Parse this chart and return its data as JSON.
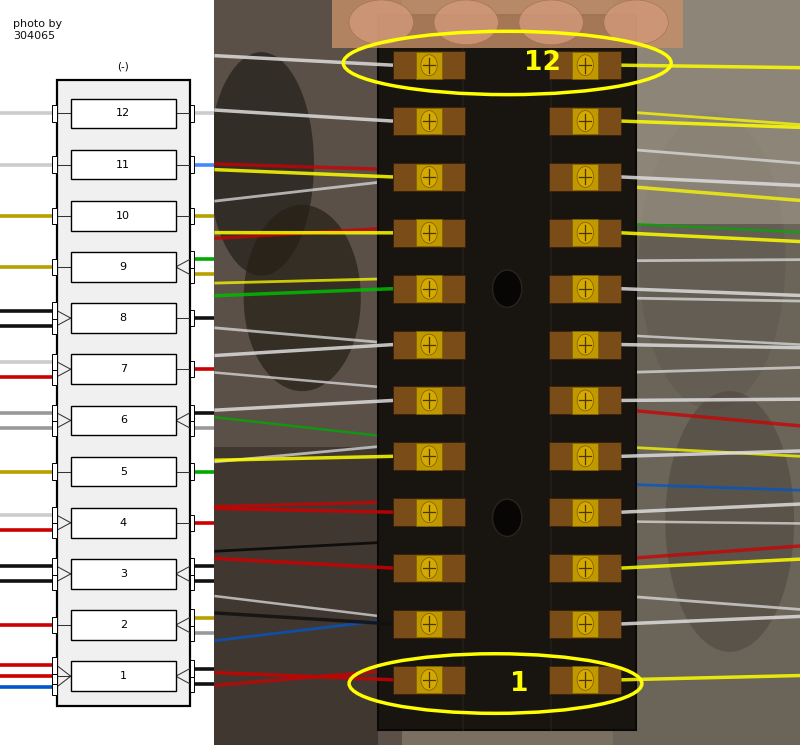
{
  "photo_credit": "photo by\n304065",
  "fuse_count": 12,
  "bg_color": "#ffffff",
  "smiley": "(-)",
  "ellipse_color": "#ffff00",
  "photo_bg_color": "#7a7060",
  "block_color": "#1c1a16",
  "copper_color": "#8B5A20",
  "screw_color": "#c8a000",
  "left_wires": {
    "12": [
      [
        "#cccccc",
        0.0
      ]
    ],
    "11": [
      [
        "#cccccc",
        0.0
      ]
    ],
    "10": [
      [
        "#b8a000",
        0.0
      ]
    ],
    "9": [
      [
        "#b8a000",
        0.0
      ]
    ],
    "8": [
      [
        "#111111",
        -0.35
      ],
      [
        "#111111",
        0.35
      ]
    ],
    "7": [
      [
        "#cc0000",
        -0.35
      ],
      [
        "#cccccc",
        0.35
      ]
    ],
    "6": [
      [
        "#999999",
        -0.35
      ],
      [
        "#999999",
        0.35
      ]
    ],
    "5": [
      [
        "#b8a000",
        0.0
      ]
    ],
    "4": [
      [
        "#cc0000",
        -0.35
      ],
      [
        "#cccccc",
        0.35
      ]
    ],
    "3": [
      [
        "#111111",
        -0.35
      ],
      [
        "#111111",
        0.35
      ]
    ],
    "2": [
      [
        "#cc0000",
        0.0
      ]
    ],
    "1": [
      [
        "#0055cc",
        -0.5
      ],
      [
        "#cc0000",
        0.0
      ],
      [
        "#cc0000",
        0.5
      ]
    ]
  },
  "right_wires": {
    "12": [
      [
        "#cccccc",
        0.0
      ]
    ],
    "11": [
      [
        "#4488ff",
        0.0
      ]
    ],
    "10": [
      [
        "#b8a000",
        0.0
      ]
    ],
    "9": [
      [
        "#b8a000",
        -0.35
      ],
      [
        "#00aa00",
        0.35
      ]
    ],
    "8": [
      [
        "#111111",
        0.0
      ]
    ],
    "7": [
      [
        "#cc0000",
        0.0
      ]
    ],
    "6": [
      [
        "#999999",
        -0.35
      ],
      [
        "#111111",
        0.35
      ]
    ],
    "5": [
      [
        "#00aa00",
        0.0
      ]
    ],
    "4": [
      [
        "#cc0000",
        0.0
      ]
    ],
    "3": [
      [
        "#111111",
        -0.35
      ],
      [
        "#111111",
        0.35
      ]
    ],
    "2": [
      [
        "#999999",
        -0.35
      ],
      [
        "#b8a000",
        0.35
      ]
    ],
    "1": [
      [
        "#111111",
        -0.35
      ],
      [
        "#111111",
        0.35
      ]
    ]
  },
  "photo_wires_left": {
    "12": "#dddddd",
    "11": "#dddddd",
    "10": "#ffff00",
    "9": "#ffff00",
    "8": "#00bb00",
    "7": "#dddddd",
    "6": "#dddddd",
    "5": "#ffff00",
    "4": "#cc0000",
    "3": "#cc0000",
    "2": "#000000",
    "1": "#cc0000"
  },
  "photo_wires_right": {
    "12": "#ffff00",
    "11": "#ffff00",
    "10": "#dddddd",
    "9": "#ffff00",
    "8": "#dddddd",
    "7": "#dddddd",
    "6": "#dddddd",
    "5": "#dddddd",
    "4": "#dddddd",
    "3": "#ffff00",
    "2": "#dddddd",
    "1": "#ffff00"
  }
}
